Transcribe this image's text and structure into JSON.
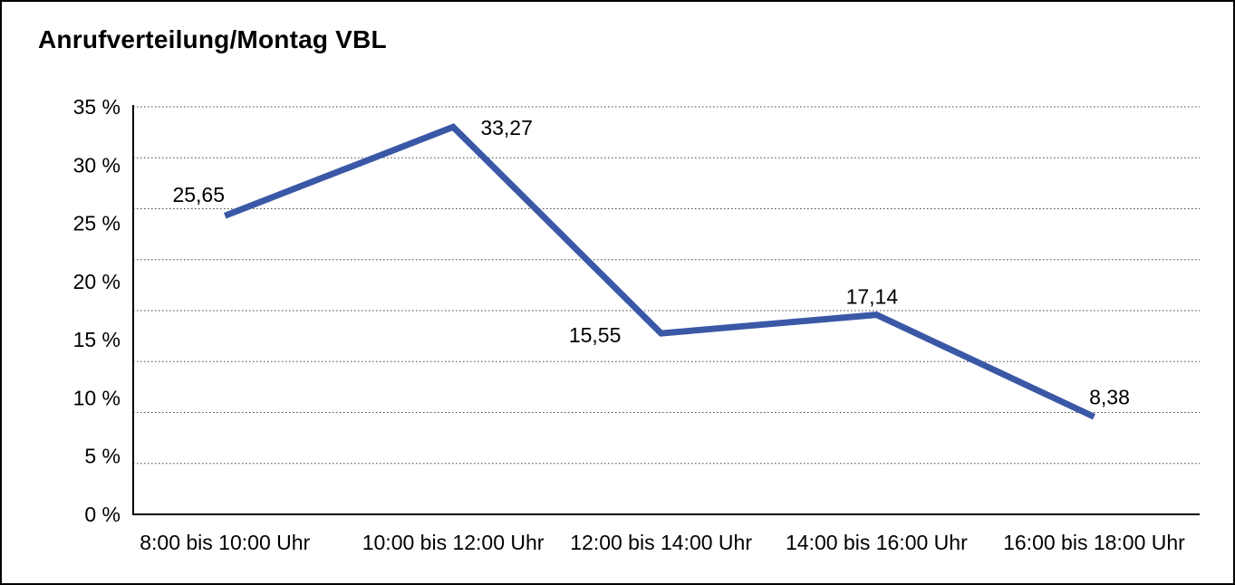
{
  "window": {
    "title": "Anrufverteilung/Montag VBL"
  },
  "chart_data": {
    "type": "line",
    "title": "Anrufverteilung/Montag VBL",
    "categories": [
      "8:00 bis 10:00 Uhr",
      "10:00 bis 12:00 Uhr",
      "12:00 bis 14:00 Uhr",
      "14:00 bis 16:00 Uhr",
      "16:00 bis 18:00 Uhr"
    ],
    "values": [
      25.65,
      33.27,
      15.55,
      17.14,
      8.38
    ],
    "point_labels": [
      "25,65",
      "33,27",
      "15,55",
      "17,14",
      "8,38"
    ],
    "xlabel": "",
    "ylabel": "",
    "ylim": [
      0,
      35
    ],
    "y_tick_step": 5,
    "y_tick_labels": [
      "0 %",
      "5 %",
      "10 %",
      "15 %",
      "20 %",
      "25 %",
      "30 %",
      "35 %"
    ],
    "gridline_divisions": 8,
    "grid": "horizontal-dotted",
    "legend_position": "none",
    "colors": {
      "line": "#3A58A6",
      "text": "#000000",
      "grid": "#444444",
      "axis": "#000000",
      "background": "#FFFFFF",
      "border": "#000000"
    }
  }
}
